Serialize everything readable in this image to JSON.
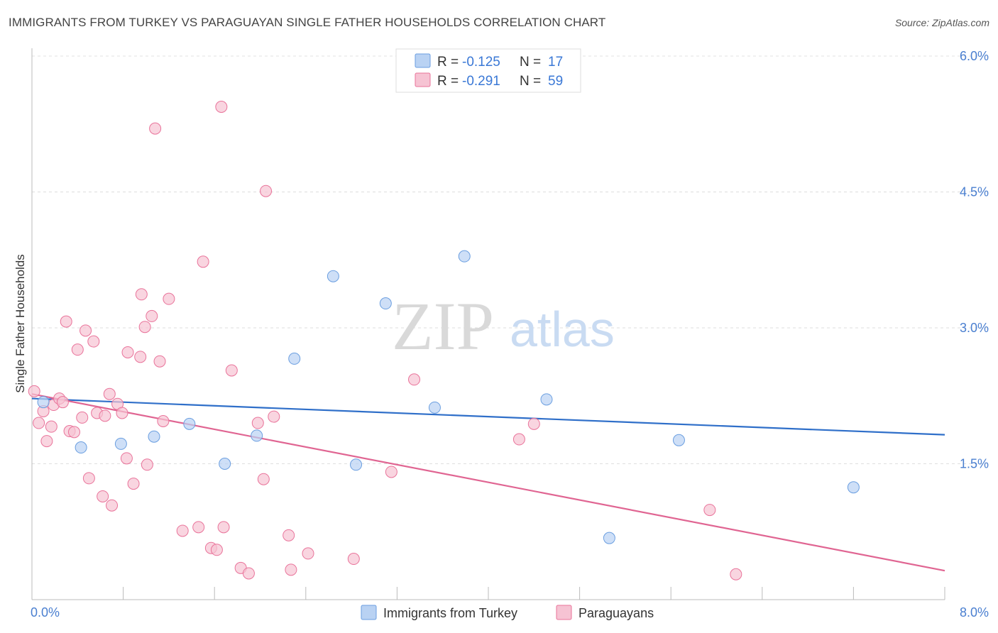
{
  "title": "IMMIGRANTS FROM TURKEY VS PARAGUAYAN SINGLE FATHER HOUSEHOLDS CORRELATION CHART",
  "source": "Source: ZipAtlas.com",
  "watermark": {
    "zip": "ZIP",
    "atlas": "atlas"
  },
  "colors": {
    "blue": "#6a9ee0",
    "blue_fill": "#b9d2f3",
    "pink": "#e9739a",
    "pink_fill": "#f6c3d3",
    "blue_line": "#2f6fc9",
    "pink_line": "#e06592"
  },
  "legend": {
    "rows": [
      {
        "r_label": "R =",
        "r_value": "-0.125",
        "n_label": "N =",
        "n_value": "17"
      },
      {
        "r_label": "R =",
        "r_value": "-0.291",
        "n_label": "N =",
        "n_value": "59"
      }
    ]
  },
  "chart_data": {
    "type": "scatter",
    "title": "IMMIGRANTS FROM TURKEY VS PARAGUAYAN SINGLE FATHER HOUSEHOLDS CORRELATION CHART",
    "xlabel": "",
    "ylabel": "Single Father Households",
    "xlim": [
      0,
      8.0
    ],
    "ylim": [
      0,
      6.0
    ],
    "x_tick_labels": [
      "0.0%",
      "8.0%"
    ],
    "y_tick_labels": [
      "6.0%",
      "4.5%",
      "3.0%",
      "1.5%"
    ],
    "y_ticks": [
      6.0,
      4.5,
      3.0,
      1.5
    ],
    "grid": true,
    "legend_position": "top-center",
    "series": [
      {
        "name": "Immigrants from Turkey",
        "color": "#6a9ee0",
        "trend": {
          "x": [
            0,
            8.0
          ],
          "y": [
            2.22,
            1.82
          ]
        },
        "points": [
          {
            "x": 0.1,
            "y": 2.18
          },
          {
            "x": 0.43,
            "y": 1.68
          },
          {
            "x": 0.78,
            "y": 1.72
          },
          {
            "x": 1.07,
            "y": 1.8
          },
          {
            "x": 1.38,
            "y": 1.94
          },
          {
            "x": 1.69,
            "y": 1.5
          },
          {
            "x": 1.97,
            "y": 1.81
          },
          {
            "x": 2.3,
            "y": 2.66
          },
          {
            "x": 2.64,
            "y": 3.57
          },
          {
            "x": 2.84,
            "y": 1.49
          },
          {
            "x": 3.1,
            "y": 3.27
          },
          {
            "x": 3.53,
            "y": 2.12
          },
          {
            "x": 3.79,
            "y": 3.79
          },
          {
            "x": 4.51,
            "y": 2.21
          },
          {
            "x": 5.06,
            "y": 0.68
          },
          {
            "x": 5.67,
            "y": 1.76
          },
          {
            "x": 7.2,
            "y": 1.24
          }
        ]
      },
      {
        "name": "Paraguayans",
        "color": "#e9739a",
        "trend": {
          "x": [
            0,
            8.0
          ],
          "y": [
            2.27,
            0.32
          ]
        },
        "points": [
          {
            "x": 0.02,
            "y": 2.3
          },
          {
            "x": 0.06,
            "y": 1.95
          },
          {
            "x": 0.1,
            "y": 2.08
          },
          {
            "x": 0.13,
            "y": 1.75
          },
          {
            "x": 0.17,
            "y": 1.91
          },
          {
            "x": 0.19,
            "y": 2.15
          },
          {
            "x": 0.24,
            "y": 2.22
          },
          {
            "x": 0.27,
            "y": 2.18
          },
          {
            "x": 0.3,
            "y": 3.07
          },
          {
            "x": 0.33,
            "y": 1.86
          },
          {
            "x": 0.37,
            "y": 1.85
          },
          {
            "x": 0.4,
            "y": 2.76
          },
          {
            "x": 0.44,
            "y": 2.01
          },
          {
            "x": 0.47,
            "y": 2.97
          },
          {
            "x": 0.5,
            "y": 1.34
          },
          {
            "x": 0.54,
            "y": 2.85
          },
          {
            "x": 0.57,
            "y": 2.06
          },
          {
            "x": 0.62,
            "y": 1.14
          },
          {
            "x": 0.64,
            "y": 2.03
          },
          {
            "x": 0.68,
            "y": 2.27
          },
          {
            "x": 0.7,
            "y": 1.04
          },
          {
            "x": 0.75,
            "y": 2.16
          },
          {
            "x": 0.79,
            "y": 2.06
          },
          {
            "x": 0.83,
            "y": 1.56
          },
          {
            "x": 0.84,
            "y": 2.73
          },
          {
            "x": 0.89,
            "y": 1.28
          },
          {
            "x": 0.95,
            "y": 2.68
          },
          {
            "x": 0.96,
            "y": 3.37
          },
          {
            "x": 0.99,
            "y": 3.01
          },
          {
            "x": 1.01,
            "y": 1.49
          },
          {
            "x": 1.05,
            "y": 3.13
          },
          {
            "x": 1.08,
            "y": 5.2
          },
          {
            "x": 1.12,
            "y": 2.63
          },
          {
            "x": 1.15,
            "y": 1.97
          },
          {
            "x": 1.2,
            "y": 3.32
          },
          {
            "x": 1.32,
            "y": 0.76
          },
          {
            "x": 1.46,
            "y": 0.8
          },
          {
            "x": 1.5,
            "y": 3.73
          },
          {
            "x": 1.57,
            "y": 0.57
          },
          {
            "x": 1.62,
            "y": 0.55
          },
          {
            "x": 1.66,
            "y": 5.44
          },
          {
            "x": 1.68,
            "y": 0.8
          },
          {
            "x": 1.75,
            "y": 2.53
          },
          {
            "x": 1.83,
            "y": 0.35
          },
          {
            "x": 1.9,
            "y": 0.29
          },
          {
            "x": 1.98,
            "y": 1.95
          },
          {
            "x": 2.03,
            "y": 1.33
          },
          {
            "x": 2.05,
            "y": 4.51
          },
          {
            "x": 2.12,
            "y": 2.02
          },
          {
            "x": 2.25,
            "y": 0.71
          },
          {
            "x": 2.27,
            "y": 0.33
          },
          {
            "x": 2.42,
            "y": 0.51
          },
          {
            "x": 2.82,
            "y": 0.45
          },
          {
            "x": 3.15,
            "y": 1.41
          },
          {
            "x": 3.35,
            "y": 2.43
          },
          {
            "x": 4.27,
            "y": 1.77
          },
          {
            "x": 4.4,
            "y": 1.94
          },
          {
            "x": 5.94,
            "y": 0.99
          },
          {
            "x": 6.17,
            "y": 0.28
          }
        ]
      }
    ]
  }
}
